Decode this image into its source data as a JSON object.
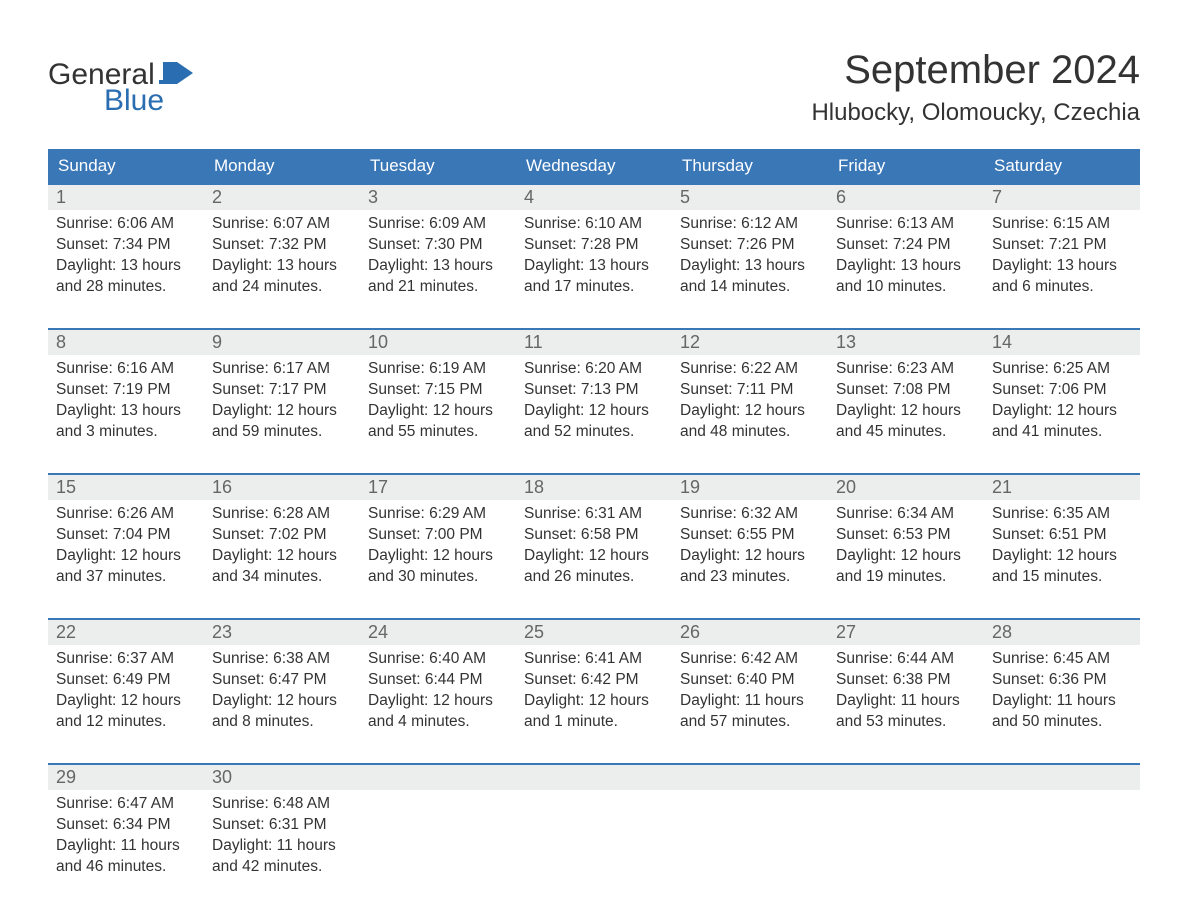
{
  "logo": {
    "top": "General",
    "bottom": "Blue",
    "flag_color": "#2a6db0"
  },
  "title": "September 2024",
  "location": "Hlubocky, Olomoucky, Czechia",
  "colors": {
    "header_bg": "#3a77b7",
    "header_fg": "#ffffff",
    "daynum_bg": "#eceded",
    "daynum_fg": "#666666",
    "rule": "#3a77b7",
    "text": "#333333",
    "page_bg": "#ffffff",
    "logo_blue": "#2a6db0"
  },
  "days_of_week": [
    "Sunday",
    "Monday",
    "Tuesday",
    "Wednesday",
    "Thursday",
    "Friday",
    "Saturday"
  ],
  "weeks": [
    [
      {
        "n": "1",
        "sunrise": "Sunrise: 6:06 AM",
        "sunset": "Sunset: 7:34 PM",
        "d1": "Daylight: 13 hours",
        "d2": "and 28 minutes."
      },
      {
        "n": "2",
        "sunrise": "Sunrise: 6:07 AM",
        "sunset": "Sunset: 7:32 PM",
        "d1": "Daylight: 13 hours",
        "d2": "and 24 minutes."
      },
      {
        "n": "3",
        "sunrise": "Sunrise: 6:09 AM",
        "sunset": "Sunset: 7:30 PM",
        "d1": "Daylight: 13 hours",
        "d2": "and 21 minutes."
      },
      {
        "n": "4",
        "sunrise": "Sunrise: 6:10 AM",
        "sunset": "Sunset: 7:28 PM",
        "d1": "Daylight: 13 hours",
        "d2": "and 17 minutes."
      },
      {
        "n": "5",
        "sunrise": "Sunrise: 6:12 AM",
        "sunset": "Sunset: 7:26 PM",
        "d1": "Daylight: 13 hours",
        "d2": "and 14 minutes."
      },
      {
        "n": "6",
        "sunrise": "Sunrise: 6:13 AM",
        "sunset": "Sunset: 7:24 PM",
        "d1": "Daylight: 13 hours",
        "d2": "and 10 minutes."
      },
      {
        "n": "7",
        "sunrise": "Sunrise: 6:15 AM",
        "sunset": "Sunset: 7:21 PM",
        "d1": "Daylight: 13 hours",
        "d2": "and 6 minutes."
      }
    ],
    [
      {
        "n": "8",
        "sunrise": "Sunrise: 6:16 AM",
        "sunset": "Sunset: 7:19 PM",
        "d1": "Daylight: 13 hours",
        "d2": "and 3 minutes."
      },
      {
        "n": "9",
        "sunrise": "Sunrise: 6:17 AM",
        "sunset": "Sunset: 7:17 PM",
        "d1": "Daylight: 12 hours",
        "d2": "and 59 minutes."
      },
      {
        "n": "10",
        "sunrise": "Sunrise: 6:19 AM",
        "sunset": "Sunset: 7:15 PM",
        "d1": "Daylight: 12 hours",
        "d2": "and 55 minutes."
      },
      {
        "n": "11",
        "sunrise": "Sunrise: 6:20 AM",
        "sunset": "Sunset: 7:13 PM",
        "d1": "Daylight: 12 hours",
        "d2": "and 52 minutes."
      },
      {
        "n": "12",
        "sunrise": "Sunrise: 6:22 AM",
        "sunset": "Sunset: 7:11 PM",
        "d1": "Daylight: 12 hours",
        "d2": "and 48 minutes."
      },
      {
        "n": "13",
        "sunrise": "Sunrise: 6:23 AM",
        "sunset": "Sunset: 7:08 PM",
        "d1": "Daylight: 12 hours",
        "d2": "and 45 minutes."
      },
      {
        "n": "14",
        "sunrise": "Sunrise: 6:25 AM",
        "sunset": "Sunset: 7:06 PM",
        "d1": "Daylight: 12 hours",
        "d2": "and 41 minutes."
      }
    ],
    [
      {
        "n": "15",
        "sunrise": "Sunrise: 6:26 AM",
        "sunset": "Sunset: 7:04 PM",
        "d1": "Daylight: 12 hours",
        "d2": "and 37 minutes."
      },
      {
        "n": "16",
        "sunrise": "Sunrise: 6:28 AM",
        "sunset": "Sunset: 7:02 PM",
        "d1": "Daylight: 12 hours",
        "d2": "and 34 minutes."
      },
      {
        "n": "17",
        "sunrise": "Sunrise: 6:29 AM",
        "sunset": "Sunset: 7:00 PM",
        "d1": "Daylight: 12 hours",
        "d2": "and 30 minutes."
      },
      {
        "n": "18",
        "sunrise": "Sunrise: 6:31 AM",
        "sunset": "Sunset: 6:58 PM",
        "d1": "Daylight: 12 hours",
        "d2": "and 26 minutes."
      },
      {
        "n": "19",
        "sunrise": "Sunrise: 6:32 AM",
        "sunset": "Sunset: 6:55 PM",
        "d1": "Daylight: 12 hours",
        "d2": "and 23 minutes."
      },
      {
        "n": "20",
        "sunrise": "Sunrise: 6:34 AM",
        "sunset": "Sunset: 6:53 PM",
        "d1": "Daylight: 12 hours",
        "d2": "and 19 minutes."
      },
      {
        "n": "21",
        "sunrise": "Sunrise: 6:35 AM",
        "sunset": "Sunset: 6:51 PM",
        "d1": "Daylight: 12 hours",
        "d2": "and 15 minutes."
      }
    ],
    [
      {
        "n": "22",
        "sunrise": "Sunrise: 6:37 AM",
        "sunset": "Sunset: 6:49 PM",
        "d1": "Daylight: 12 hours",
        "d2": "and 12 minutes."
      },
      {
        "n": "23",
        "sunrise": "Sunrise: 6:38 AM",
        "sunset": "Sunset: 6:47 PM",
        "d1": "Daylight: 12 hours",
        "d2": "and 8 minutes."
      },
      {
        "n": "24",
        "sunrise": "Sunrise: 6:40 AM",
        "sunset": "Sunset: 6:44 PM",
        "d1": "Daylight: 12 hours",
        "d2": "and 4 minutes."
      },
      {
        "n": "25",
        "sunrise": "Sunrise: 6:41 AM",
        "sunset": "Sunset: 6:42 PM",
        "d1": "Daylight: 12 hours",
        "d2": "and 1 minute."
      },
      {
        "n": "26",
        "sunrise": "Sunrise: 6:42 AM",
        "sunset": "Sunset: 6:40 PM",
        "d1": "Daylight: 11 hours",
        "d2": "and 57 minutes."
      },
      {
        "n": "27",
        "sunrise": "Sunrise: 6:44 AM",
        "sunset": "Sunset: 6:38 PM",
        "d1": "Daylight: 11 hours",
        "d2": "and 53 minutes."
      },
      {
        "n": "28",
        "sunrise": "Sunrise: 6:45 AM",
        "sunset": "Sunset: 6:36 PM",
        "d1": "Daylight: 11 hours",
        "d2": "and 50 minutes."
      }
    ],
    [
      {
        "n": "29",
        "sunrise": "Sunrise: 6:47 AM",
        "sunset": "Sunset: 6:34 PM",
        "d1": "Daylight: 11 hours",
        "d2": "and 46 minutes."
      },
      {
        "n": "30",
        "sunrise": "Sunrise: 6:48 AM",
        "sunset": "Sunset: 6:31 PM",
        "d1": "Daylight: 11 hours",
        "d2": "and 42 minutes."
      },
      null,
      null,
      null,
      null,
      null
    ]
  ]
}
